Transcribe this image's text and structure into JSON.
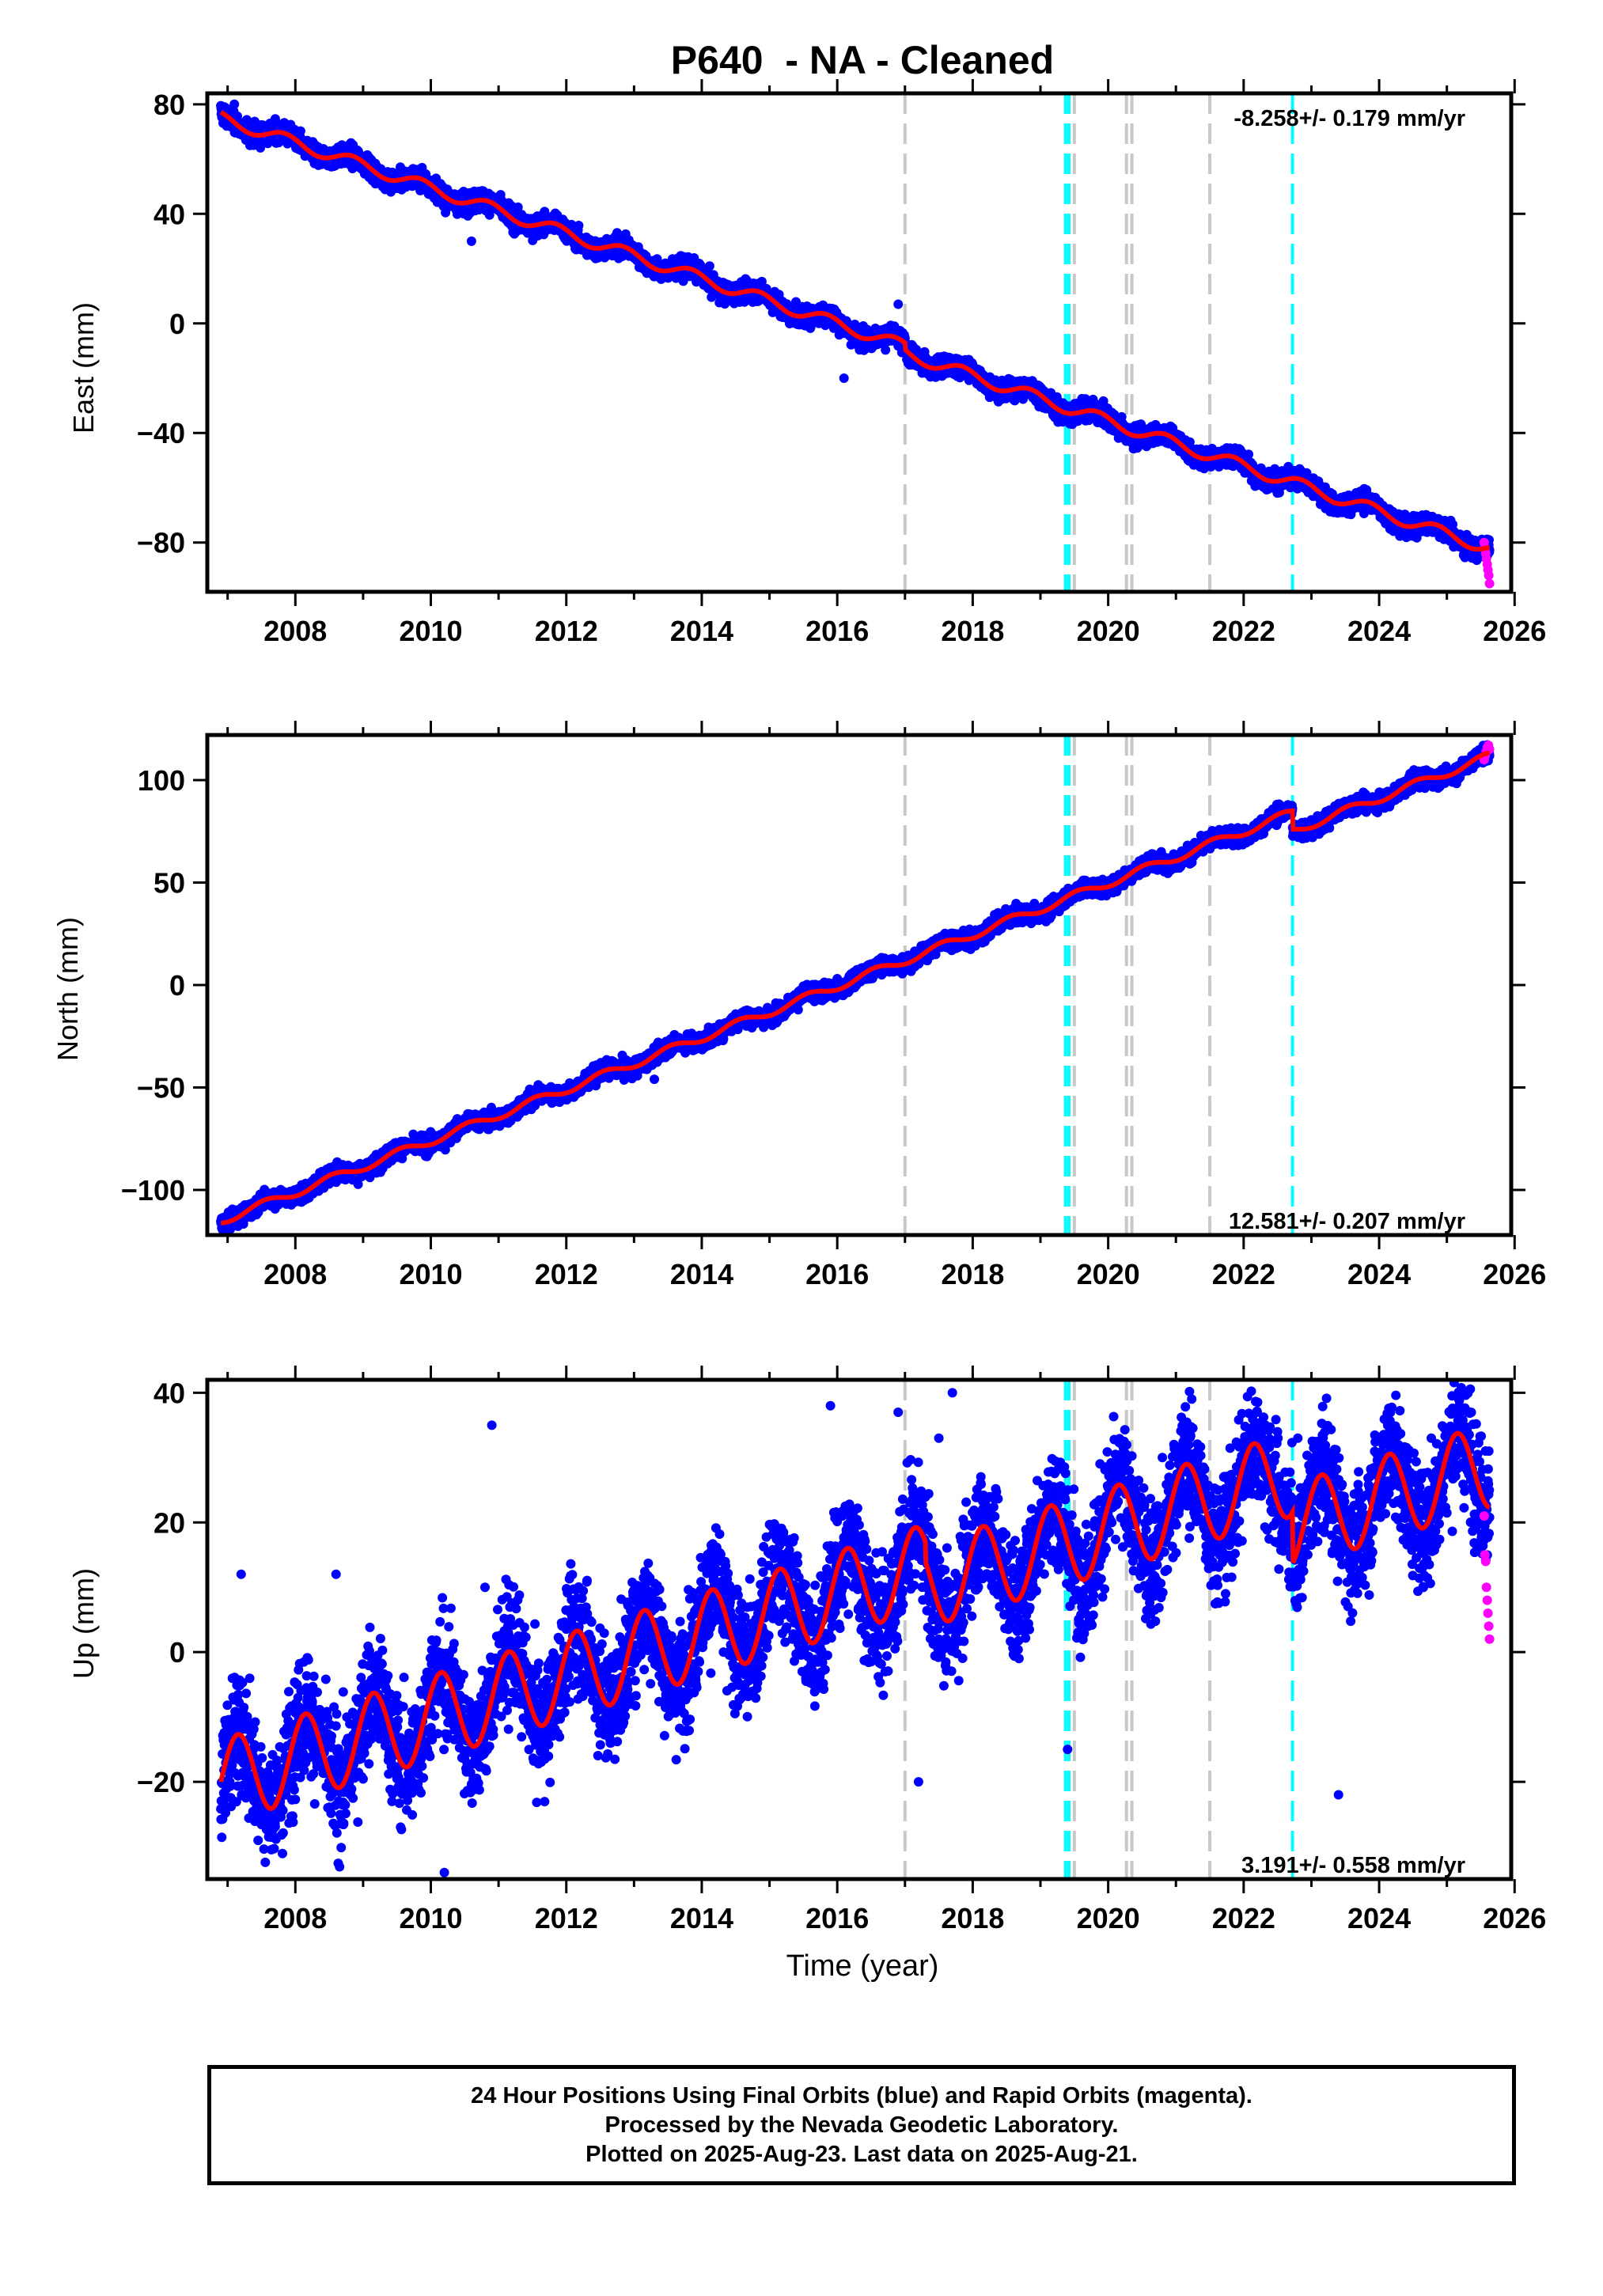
{
  "colors": {
    "final_orbits": "#0000ff",
    "rapid_orbits": "#ff00ff",
    "model_fit": "#ff0000",
    "equipment_change": "#c8c8c8",
    "earthquake": "#00ffff",
    "frame": "#000000"
  },
  "footer": {
    "line1": "24 Hour Positions Using Final Orbits (blue) and Rapid Orbits (magenta).",
    "line2": "Processed by the Nevada Geodetic Laboratory.",
    "line3": "Plotted on 2025-Aug-23. Last data on 2025-Aug-21."
  },
  "chart_data": [
    {
      "type": "scatter",
      "title": "P640  - NA - Cleaned",
      "ylabel": "East (mm)",
      "xlabel": "",
      "xlim": [
        2006.7,
        2025.95
      ],
      "ylim": [
        -98,
        84
      ],
      "xticks": [
        2008,
        2010,
        2012,
        2014,
        2016,
        2018,
        2020,
        2022,
        2024,
        2026
      ],
      "xtick_labels": [
        "2008",
        "2010",
        "2012",
        "2014",
        "2016",
        "2018",
        "2020",
        "2022",
        "2024",
        "2026"
      ],
      "yticks": [
        -80,
        -40,
        0,
        40,
        80
      ],
      "ytick_labels": [
        "−80",
        "−40",
        "0",
        "40",
        "80"
      ],
      "rate_label": "-8.258+/- 0.179 mm/yr",
      "rate_label_position": "top-right",
      "model": {
        "start": 2006.9,
        "end": 2025.63,
        "intercept": 75,
        "rate": -8.258,
        "annual_amplitude": 2.2,
        "annual_phase": 0.3,
        "scatter": 1.8,
        "steps": [
          {
            "year": 2017.0,
            "offset": -2.5
          }
        ]
      },
      "rapid_points": {
        "start": 2025.55,
        "end": 2025.63,
        "values": [
          -80,
          -82,
          -84,
          -86,
          -88,
          -90,
          -92,
          -95
        ]
      },
      "outliers": [
        [
          2007.1,
          80
        ],
        [
          2010.6,
          30
        ],
        [
          2016.9,
          7
        ],
        [
          2016.1,
          -20
        ]
      ],
      "gray_lines": [
        2017.0,
        2019.5,
        2020.27,
        2020.35,
        2021.5
      ],
      "cyan_lines": [
        2019.37,
        2019.42,
        2022.72
      ]
    },
    {
      "type": "scatter",
      "title": "",
      "ylabel": "North (mm)",
      "xlabel": "",
      "xlim": [
        2006.7,
        2025.95
      ],
      "ylim": [
        -122,
        122
      ],
      "xticks": [
        2008,
        2010,
        2012,
        2014,
        2016,
        2018,
        2020,
        2022,
        2024,
        2026
      ],
      "xtick_labels": [
        "2008",
        "2010",
        "2012",
        "2014",
        "2016",
        "2018",
        "2020",
        "2022",
        "2024",
        "2026"
      ],
      "yticks": [
        -100,
        -50,
        0,
        50,
        100
      ],
      "ytick_labels": [
        "−100",
        "−50",
        "0",
        "50",
        "100"
      ],
      "rate_label": "12.581+/- 0.207 mm/yr",
      "rate_label_position": "bottom-right",
      "model": {
        "start": 2006.9,
        "end": 2025.63,
        "intercept": -115,
        "rate": 12.581,
        "annual_amplitude": 2.0,
        "annual_phase": 0.6,
        "scatter": 2.0,
        "steps": [
          {
            "year": 2022.72,
            "offset": -9
          }
        ]
      },
      "rapid_points": {
        "start": 2025.55,
        "end": 2025.63,
        "values": [
          110,
          112,
          114,
          116,
          117,
          115
        ]
      },
      "outliers": [
        [
          2010.2,
          -72
        ],
        [
          2013.3,
          -46
        ]
      ],
      "gray_lines": [
        2017.0,
        2019.5,
        2020.27,
        2020.35,
        2021.5
      ],
      "cyan_lines": [
        2019.37,
        2019.42,
        2022.72
      ]
    },
    {
      "type": "scatter",
      "title": "",
      "ylabel": "Up (mm)",
      "xlabel": "Time (year)",
      "xlim": [
        2006.7,
        2025.95
      ],
      "ylim": [
        -35,
        42
      ],
      "xticks": [
        2008,
        2010,
        2012,
        2014,
        2016,
        2018,
        2020,
        2022,
        2024,
        2026
      ],
      "xtick_labels": [
        "2008",
        "2010",
        "2012",
        "2014",
        "2016",
        "2018",
        "2020",
        "2022",
        "2024",
        "2026"
      ],
      "yticks": [
        -20,
        0,
        20,
        40
      ],
      "ytick_labels": [
        "−20",
        "0",
        "20",
        "40"
      ],
      "rate_label": "3.191+/- 0.558 mm/yr",
      "rate_label_position": "bottom-right",
      "model": {
        "start": 2006.9,
        "end": 2025.63,
        "intercept": -20,
        "rate": 3.191,
        "annual_amplitude": 6.5,
        "annual_phase": 0.0,
        "scatter": 4.5,
        "steps": [
          {
            "year": 2017.3,
            "offset": -3
          },
          {
            "year": 2022.72,
            "offset": -8
          }
        ]
      },
      "rapid_points": {
        "start": 2025.55,
        "end": 2025.63,
        "values": [
          21,
          15,
          14,
          10,
          8,
          6,
          4,
          2
        ]
      },
      "outliers": [
        [
          2007.2,
          12
        ],
        [
          2008.6,
          12
        ],
        [
          2010.9,
          35
        ],
        [
          2010.8,
          10
        ],
        [
          2015.9,
          38
        ],
        [
          2016.9,
          37
        ],
        [
          2017.7,
          40
        ],
        [
          2017.5,
          33
        ],
        [
          2020.8,
          30
        ],
        [
          2022.2,
          37
        ],
        [
          2022.5,
          34
        ],
        [
          2022.8,
          33
        ],
        [
          2023.4,
          -22
        ],
        [
          2017.2,
          -20
        ],
        [
          2019.4,
          -15
        ],
        [
          2010.2,
          -34
        ]
      ],
      "gray_lines": [
        2017.0,
        2019.5,
        2020.27,
        2020.35,
        2021.5
      ],
      "cyan_lines": [
        2019.37,
        2019.42,
        2022.72
      ]
    }
  ]
}
